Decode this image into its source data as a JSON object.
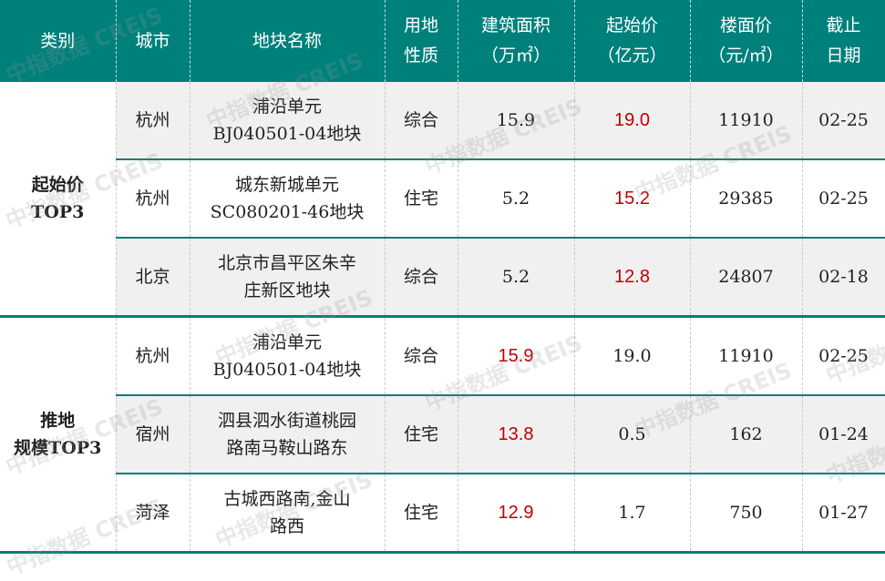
{
  "headers": [
    "类别",
    "城市",
    "地块名称",
    "用地性质",
    "建筑面积（万㎡）",
    "起始价（亿元）",
    "楼面价（元/㎡）",
    "截止日期"
  ],
  "header_lines": [
    [
      "类别"
    ],
    [
      "城市"
    ],
    [
      "地块名称"
    ],
    [
      "用地",
      "性质"
    ],
    [
      "建筑面积",
      "（万㎡）"
    ],
    [
      "起始价",
      "（亿元）"
    ],
    [
      "楼面价",
      "（元/㎡）"
    ],
    [
      "截止",
      "日期"
    ]
  ],
  "groups": [
    {
      "category_lines": [
        "起始价",
        "TOP3"
      ],
      "highlight": "price",
      "rows": [
        {
          "city": "杭州",
          "name": [
            "浦沿单元",
            "BJ040501-04地块"
          ],
          "use": "综合",
          "area": "15.9",
          "price": "19.0",
          "unit_price": "11910",
          "deadline": "02-25"
        },
        {
          "city": "杭州",
          "name": [
            "城东新城单元",
            "SC080201-46地块"
          ],
          "use": "住宅",
          "area": "5.2",
          "price": "15.2",
          "unit_price": "29385",
          "deadline": "02-25"
        },
        {
          "city": "北京",
          "name": [
            "北京市昌平区朱辛",
            "庄新区地块"
          ],
          "use": "综合",
          "area": "5.2",
          "price": "12.8",
          "unit_price": "24807",
          "deadline": "02-18"
        }
      ]
    },
    {
      "category_lines": [
        "推地",
        "规模TOP3"
      ],
      "highlight": "area",
      "rows": [
        {
          "city": "杭州",
          "name": [
            "浦沿单元",
            "BJ040501-04地块"
          ],
          "use": "综合",
          "area": "15.9",
          "price": "19.0",
          "unit_price": "11910",
          "deadline": "02-25"
        },
        {
          "city": "宿州",
          "name": [
            "泗县泗水街道桃园",
            "路南马鞍山路东"
          ],
          "use": "住宅",
          "area": "13.8",
          "price": "0.5",
          "unit_price": "162",
          "deadline": "01-24"
        },
        {
          "city": "菏泽",
          "name": [
            "古城西路南,金山",
            "路西"
          ],
          "use": "住宅",
          "area": "12.9",
          "price": "1.7",
          "unit_price": "750",
          "deadline": "01-27"
        }
      ]
    }
  ],
  "watermark": "中指数据 CREIS",
  "colors": {
    "header_bg": "#00807b",
    "highlight": "#c00000",
    "stripe": "#f0f0f0"
  }
}
